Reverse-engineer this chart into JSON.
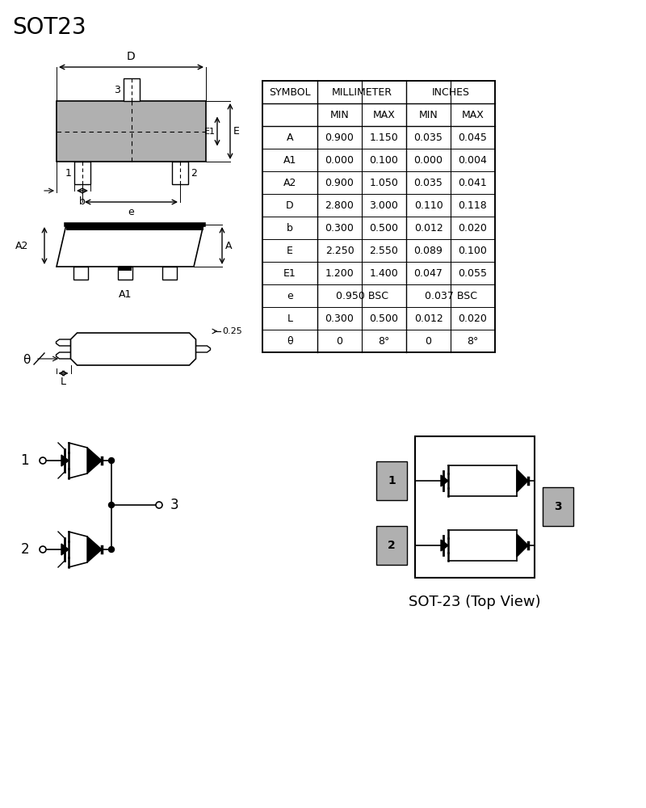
{
  "title": "SOT23",
  "bg_color": "#ffffff",
  "table_rows": [
    [
      "A",
      "0.900",
      "1.150",
      "0.035",
      "0.045"
    ],
    [
      "A1",
      "0.000",
      "0.100",
      "0.000",
      "0.004"
    ],
    [
      "A2",
      "0.900",
      "1.050",
      "0.035",
      "0.041"
    ],
    [
      "D",
      "2.800",
      "3.000",
      "0.110",
      "0.118"
    ],
    [
      "b",
      "0.300",
      "0.500",
      "0.012",
      "0.020"
    ],
    [
      "E",
      "2.250",
      "2.550",
      "0.089",
      "0.100"
    ],
    [
      "E1",
      "1.200",
      "1.400",
      "0.047",
      "0.055"
    ],
    [
      "e",
      "0.950 BSC",
      "",
      "0.037 BSC",
      ""
    ],
    [
      "L",
      "0.300",
      "0.500",
      "0.012",
      "0.020"
    ],
    [
      "θ",
      "0",
      "8°",
      "0",
      "8°"
    ]
  ],
  "line_color": "#000000",
  "gray_color": "#b0b0b0"
}
